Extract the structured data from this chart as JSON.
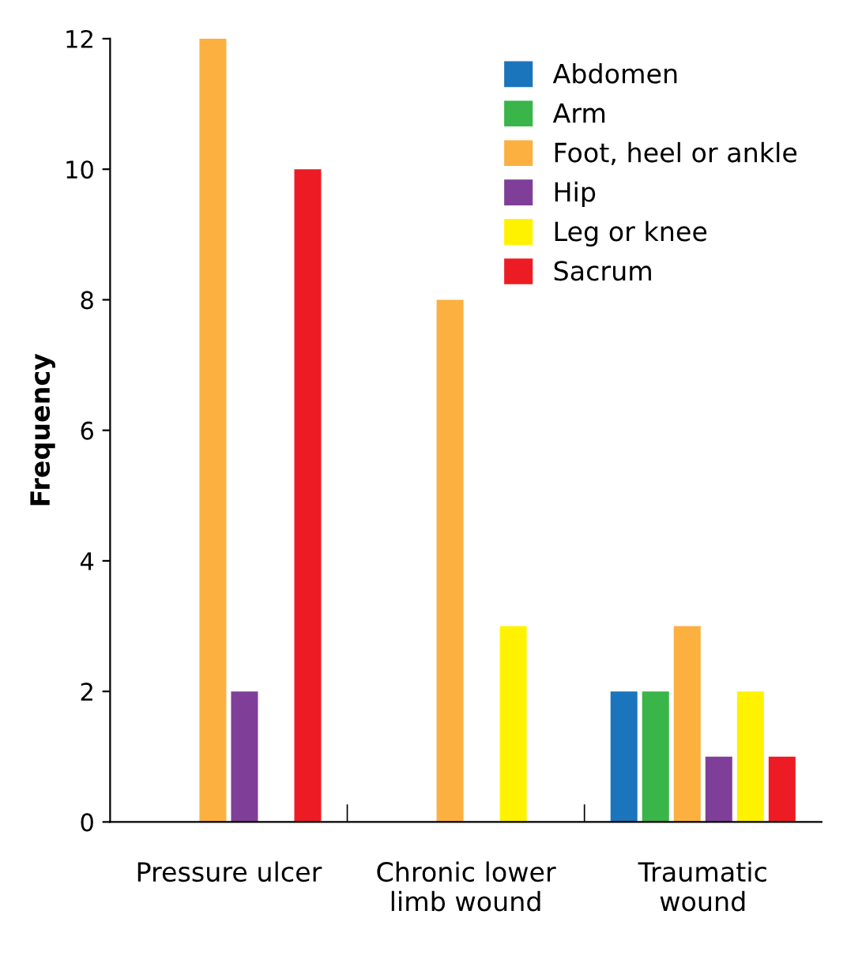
{
  "chart_data": {
    "type": "bar",
    "ylabel": "Frequency",
    "categories": [
      "Pressure ulcer",
      "Chronic lower\nlimb wound",
      "Traumatic\nwound"
    ],
    "series": [
      {
        "name": "Abdomen",
        "color": "#1b75bc",
        "values": [
          null,
          null,
          2
        ]
      },
      {
        "name": "Arm",
        "color": "#39b54a",
        "values": [
          null,
          null,
          2
        ]
      },
      {
        "name": "Foot, heel or ankle",
        "color": "#fbb040",
        "values": [
          12,
          8,
          3
        ]
      },
      {
        "name": "Hip",
        "color": "#7f3f98",
        "values": [
          2,
          null,
          1
        ]
      },
      {
        "name": "Leg or knee",
        "color": "#fff200",
        "values": [
          null,
          3,
          2
        ]
      },
      {
        "name": "Sacrum",
        "color": "#ed1c24",
        "values": [
          10,
          null,
          1
        ]
      }
    ],
    "ylim": [
      0,
      12
    ],
    "yticks": [
      0,
      2,
      4,
      6,
      8,
      10,
      12
    ],
    "grid": false,
    "legend": "top right"
  }
}
